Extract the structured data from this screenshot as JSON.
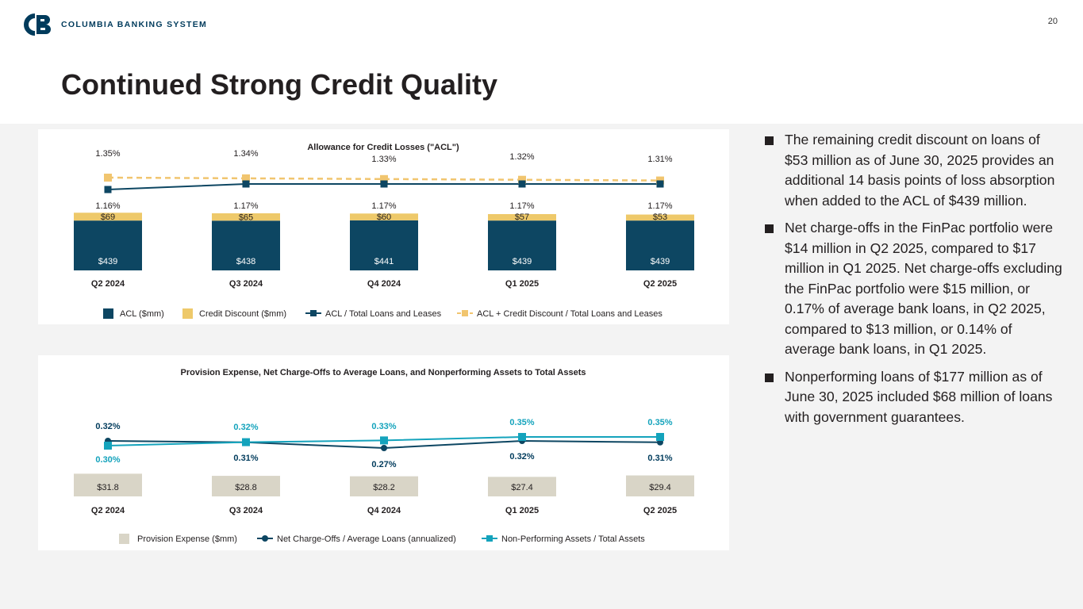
{
  "page_number": "20",
  "logo": {
    "text": "COLUMBIA BANKING SYSTEM"
  },
  "title": "Continued Strong Credit Quality",
  "bullets": [
    "The remaining credit discount on loans of $53 million as of June 30, 2025 provides an additional 14 basis points of loss absorption when added to the ACL of $439 million.",
    "Net charge-offs in the FinPac portfolio were $14 million in Q2 2025, compared to $17 million in Q1 2025. Net charge-offs excluding the FinPac portfolio were $15 million, or 0.17% of average bank loans, in Q2 2025, compared to $13 million, or 0.14% of average bank loans, in Q1 2025.",
    "Nonperforming loans of $177 million as of June 30, 2025 included $68 million of loans with government guarantees."
  ],
  "colors": {
    "navy": "#0d4662",
    "gold": "#eec96a",
    "gold_line": "#f1c56f",
    "teal": "#14a3bc",
    "beige": "#d9d5c7",
    "dark_navy": "#003b5c"
  },
  "chart_data": [
    {
      "type": "bar",
      "title": "Allowance for Credit Losses (\"ACL\")",
      "categories": [
        "Q2 2024",
        "Q3 2024",
        "Q4 2024",
        "Q1 2025",
        "Q2 2025"
      ],
      "stacked": true,
      "series": [
        {
          "name": "ACL ($mm)",
          "type": "bar",
          "values": [
            439,
            438,
            441,
            439,
            439
          ],
          "labels": [
            "$439",
            "$438",
            "$441",
            "$439",
            "$439"
          ]
        },
        {
          "name": "Credit Discount ($mm)",
          "type": "bar",
          "values": [
            69,
            65,
            60,
            57,
            53
          ],
          "labels": [
            "$69",
            "$65",
            "$60",
            "$57",
            "$53"
          ]
        },
        {
          "name": "ACL / Total Loans and Leases",
          "type": "line",
          "values": [
            1.16,
            1.17,
            1.17,
            1.17,
            1.17
          ],
          "labels": [
            "1.16%",
            "1.17%",
            "1.17%",
            "1.17%",
            "1.17%"
          ]
        },
        {
          "name": "ACL + Credit Discount / Total Loans and Leases",
          "type": "line-dashed",
          "values": [
            1.35,
            1.34,
            1.33,
            1.32,
            1.31
          ],
          "labels": [
            "1.35%",
            "1.34%",
            "1.33%",
            "1.32%",
            "1.31%"
          ]
        }
      ],
      "legend_position": "bottom",
      "grid": false
    },
    {
      "type": "bar",
      "title": "Provision Expense, Net Charge-Offs to Average Loans, and Nonperforming Assets to Total Assets",
      "categories": [
        "Q2 2024",
        "Q3 2024",
        "Q4 2024",
        "Q1 2025",
        "Q2 2025"
      ],
      "series": [
        {
          "name": "Provision Expense ($mm)",
          "type": "bar",
          "values": [
            31.8,
            28.8,
            28.2,
            27.4,
            29.4
          ],
          "labels": [
            "$31.8",
            "$28.8",
            "$28.2",
            "$27.4",
            "$29.4"
          ]
        },
        {
          "name": "Net Charge-Offs / Average Loans (annualized)",
          "type": "line",
          "values": [
            0.32,
            0.31,
            0.27,
            0.32,
            0.31
          ],
          "labels": [
            "0.32%",
            "0.31%",
            "0.27%",
            "0.32%",
            "0.31%"
          ]
        },
        {
          "name": "Non-Performing Assets / Total Assets",
          "type": "line",
          "values": [
            0.3,
            0.32,
            0.33,
            0.35,
            0.35
          ],
          "labels": [
            "0.30%",
            "0.32%",
            "0.33%",
            "0.35%",
            "0.35%"
          ]
        }
      ],
      "legend_position": "bottom",
      "grid": false
    }
  ]
}
